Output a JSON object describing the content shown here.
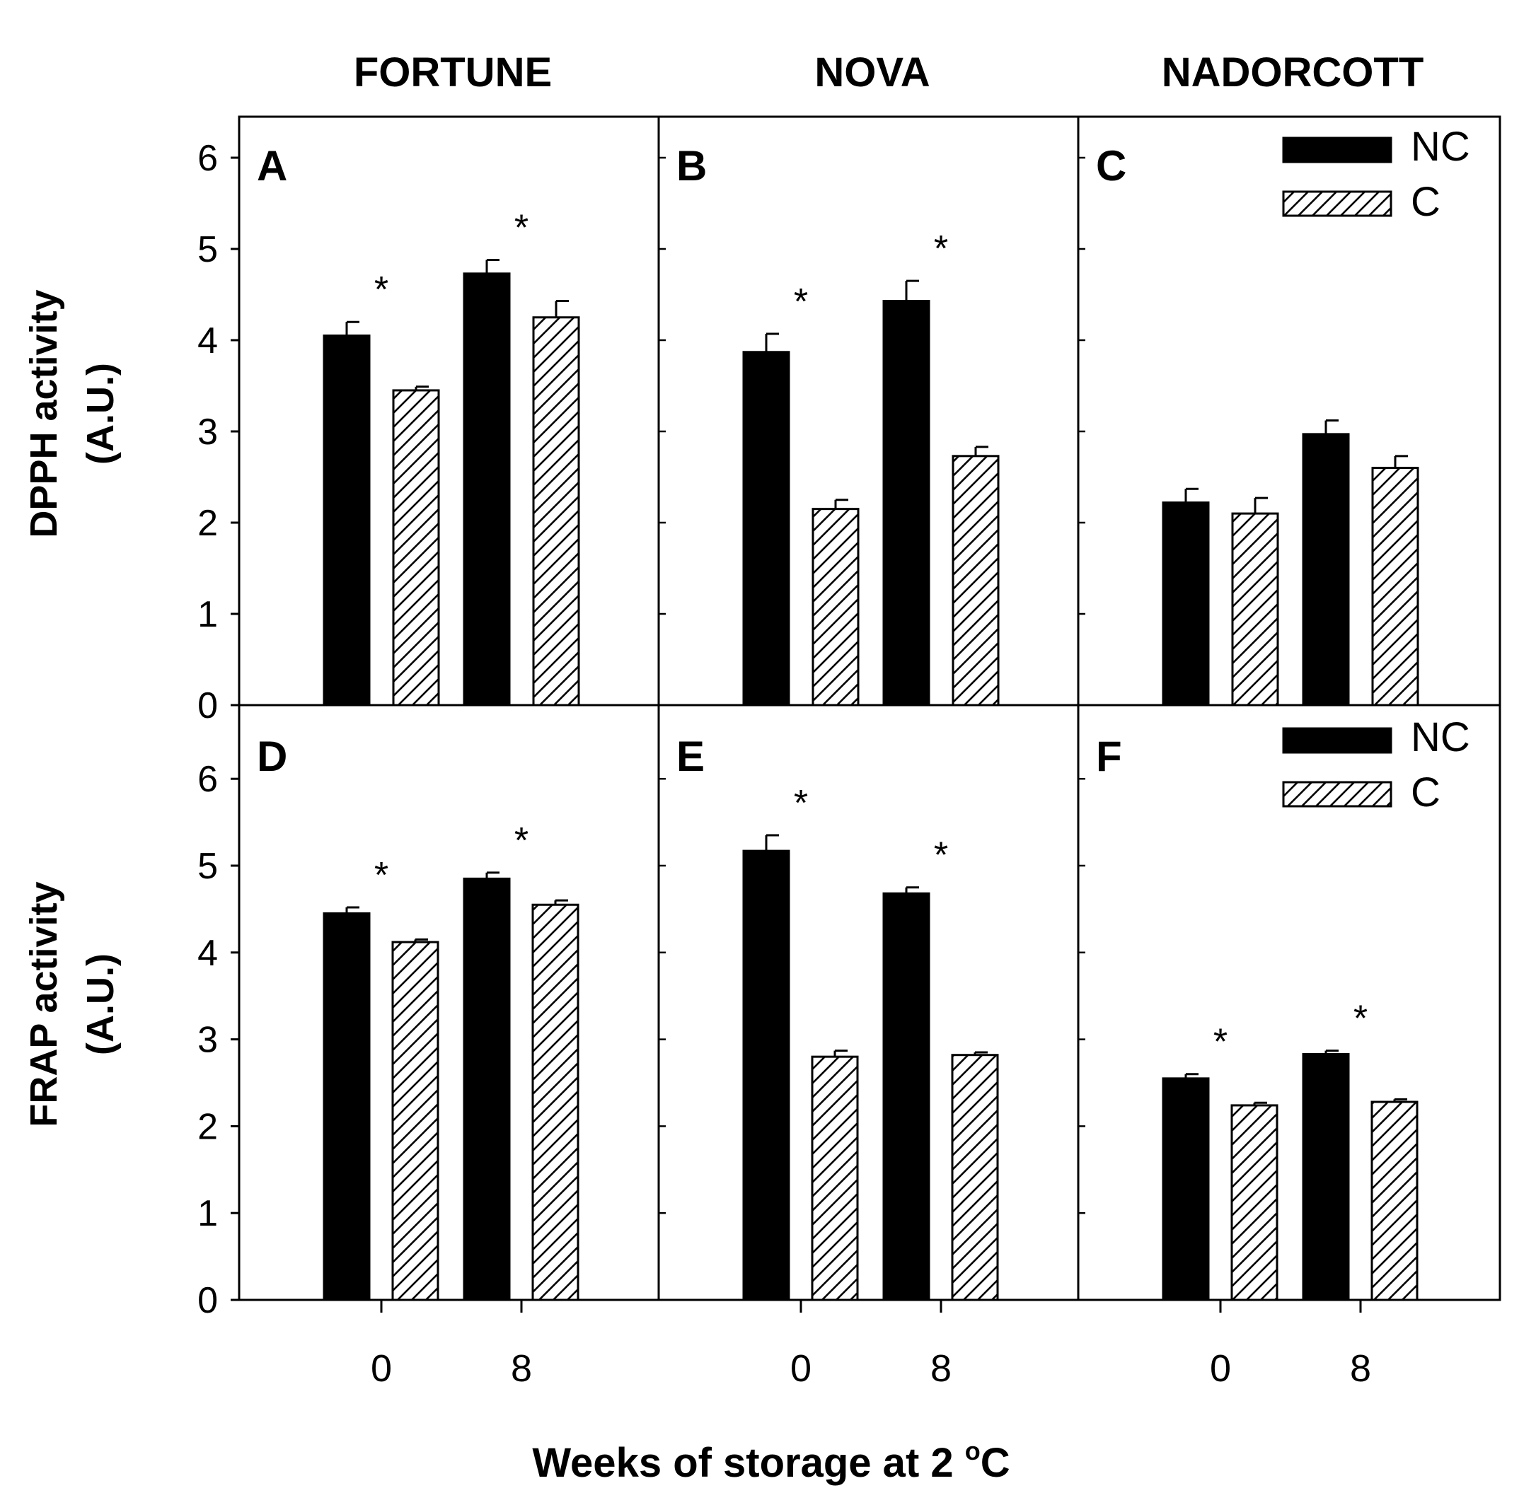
{
  "figure": {
    "column_titles": [
      "FORTUNE",
      "NOVA",
      "NADORCOTT"
    ],
    "x_title_main": "Weeks of storage at 2 ",
    "x_title_sup": "o",
    "x_title_end": "C",
    "colors": {
      "NC": "#000000",
      "C_fill": "#ffffff",
      "hatch": "#000000",
      "frame": "#000000"
    }
  },
  "chart_data": [
    {
      "type": "bar",
      "panel": "A",
      "cultivar": "FORTUNE",
      "ylabel_line1": "DPPH activity",
      "ylabel_line2": "(A.U.)",
      "ylim": [
        0,
        6.5
      ],
      "yticks": [
        "0",
        "1",
        "2",
        "3",
        "4",
        "5",
        "6"
      ],
      "categories": [
        "0",
        "8"
      ],
      "series": [
        {
          "name": "NC",
          "values": [
            4.05,
            4.73
          ],
          "errors": [
            0.15,
            0.15
          ]
        },
        {
          "name": "C",
          "values": [
            3.45,
            4.25
          ],
          "errors": [
            0.04,
            0.18
          ]
        }
      ],
      "significance": [
        "*",
        "*"
      ]
    },
    {
      "type": "bar",
      "panel": "B",
      "cultivar": "NOVA",
      "ylim": [
        0,
        6.5
      ],
      "categories": [
        "0",
        "8"
      ],
      "series": [
        {
          "name": "NC",
          "values": [
            3.87,
            4.43
          ],
          "errors": [
            0.2,
            0.22
          ]
        },
        {
          "name": "C",
          "values": [
            2.15,
            2.73
          ],
          "errors": [
            0.1,
            0.1
          ]
        }
      ],
      "significance": [
        "*",
        "*"
      ]
    },
    {
      "type": "bar",
      "panel": "C",
      "cultivar": "NADORCOTT",
      "ylim": [
        0,
        6.5
      ],
      "categories": [
        "0",
        "8"
      ],
      "series": [
        {
          "name": "NC",
          "values": [
            2.22,
            2.97
          ],
          "errors": [
            0.15,
            0.15
          ]
        },
        {
          "name": "C",
          "values": [
            2.1,
            2.6
          ],
          "errors": [
            0.17,
            0.13
          ]
        }
      ],
      "significance": [
        "",
        ""
      ],
      "legend": [
        "NC",
        "C"
      ]
    },
    {
      "type": "bar",
      "panel": "D",
      "cultivar": "FORTUNE",
      "ylabel_line1": "FRAP activity",
      "ylabel_line2": "(A.U.)",
      "ylim": [
        0,
        6.5
      ],
      "yticks": [
        "0",
        "1",
        "2",
        "3",
        "4",
        "5",
        "6"
      ],
      "categories": [
        "0",
        "8"
      ],
      "series": [
        {
          "name": "NC",
          "values": [
            4.45,
            4.85
          ],
          "errors": [
            0.07,
            0.07
          ]
        },
        {
          "name": "C",
          "values": [
            4.12,
            4.55
          ],
          "errors": [
            0.03,
            0.05
          ]
        }
      ],
      "significance": [
        "*",
        "*"
      ]
    },
    {
      "type": "bar",
      "panel": "E",
      "cultivar": "NOVA",
      "ylim": [
        0,
        6.5
      ],
      "categories": [
        "0",
        "8"
      ],
      "series": [
        {
          "name": "NC",
          "values": [
            5.17,
            4.68
          ],
          "errors": [
            0.18,
            0.07
          ]
        },
        {
          "name": "C",
          "values": [
            2.8,
            2.82
          ],
          "errors": [
            0.07,
            0.03
          ]
        }
      ],
      "significance": [
        "*",
        "*"
      ]
    },
    {
      "type": "bar",
      "panel": "F",
      "cultivar": "NADORCOTT",
      "ylim": [
        0,
        6.5
      ],
      "categories": [
        "0",
        "8"
      ],
      "series": [
        {
          "name": "NC",
          "values": [
            2.55,
            2.83
          ],
          "errors": [
            0.05,
            0.04
          ]
        },
        {
          "name": "C",
          "values": [
            2.24,
            2.28
          ],
          "errors": [
            0.03,
            0.03
          ]
        }
      ],
      "significance": [
        "*",
        "*"
      ],
      "legend": [
        "NC",
        "C"
      ]
    }
  ]
}
